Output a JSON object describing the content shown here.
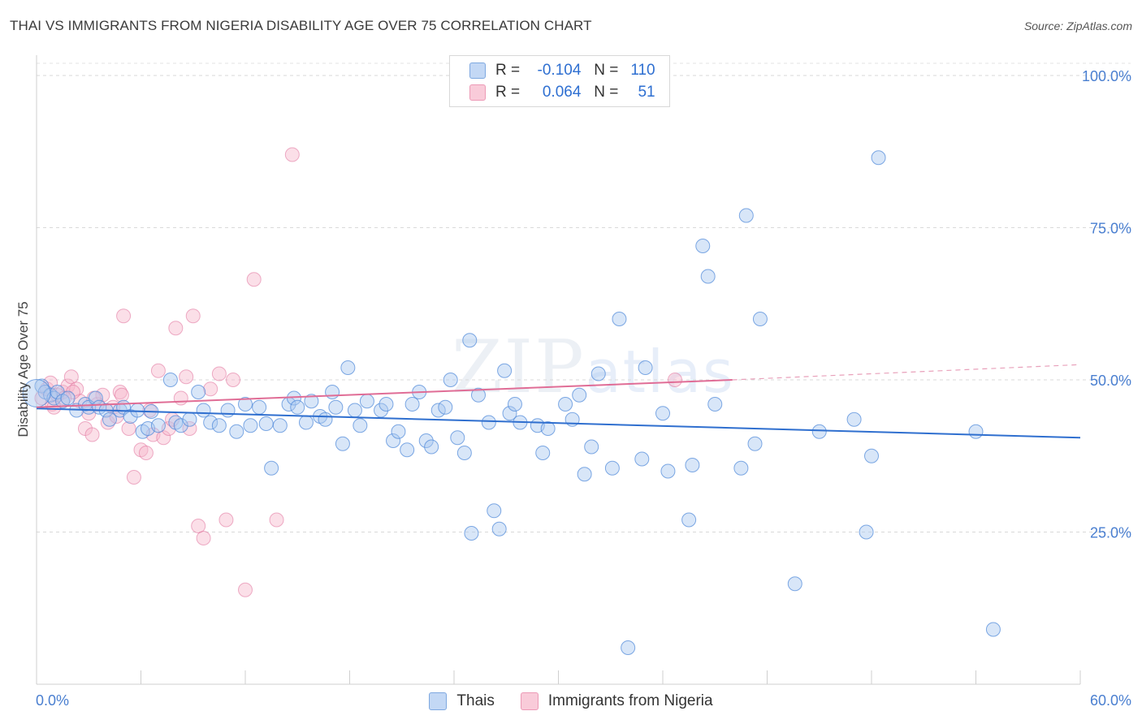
{
  "title": "THAI VS IMMIGRANTS FROM NIGERIA DISABILITY AGE OVER 75 CORRELATION CHART",
  "source": "Source: ZipAtlas.com",
  "watermark": {
    "zip": "ZIP",
    "atlas": "atlas"
  },
  "legend": {
    "rows": [
      {
        "r_label": "R =",
        "r_value": "-0.104",
        "n_label": "N =",
        "n_value": "110",
        "color": "#a9c8f0"
      },
      {
        "r_label": "R =",
        "r_value": "0.064",
        "n_label": "N =",
        "n_value": "51",
        "color": "#f6b8cc"
      }
    ]
  },
  "bottom_legend": [
    {
      "label": "Thais",
      "color": "#a9c8f0"
    },
    {
      "label": "Immigrants from Nigeria",
      "color": "#f6b8cc"
    }
  ],
  "chart_data": {
    "type": "scatter",
    "title": "THAI VS IMMIGRANTS FROM NIGERIA DISABILITY AGE OVER 75 CORRELATION CHART",
    "xlabel": "",
    "ylabel": "Disability Age Over 75",
    "xlim": [
      0,
      60
    ],
    "ylim": [
      0,
      102
    ],
    "x_tick_labels": [
      "0.0%",
      "60.0%"
    ],
    "y_ticks": [
      25,
      50,
      75,
      100
    ],
    "y_tick_labels": [
      "25.0%",
      "50.0%",
      "75.0%",
      "100.0%"
    ],
    "grid": true,
    "series": [
      {
        "name": "Thais",
        "color": "#4a86d8",
        "fill": "#a9c8f0",
        "trend": {
          "x0": 0,
          "y0": 45.3,
          "x1": 60,
          "y1": 40.5
        },
        "points": [
          [
            0.3,
            49.0
          ],
          [
            0.5,
            48.0
          ],
          [
            0.8,
            47.5
          ],
          [
            1.0,
            47.0
          ],
          [
            1.2,
            48.0
          ],
          [
            1.5,
            46.5
          ],
          [
            1.8,
            47.0
          ],
          [
            2.3,
            45.0
          ],
          [
            2.8,
            46.0
          ],
          [
            3.0,
            45.5
          ],
          [
            3.4,
            47.0
          ],
          [
            3.6,
            45.5
          ],
          [
            4.0,
            45.0
          ],
          [
            4.2,
            43.5
          ],
          [
            4.8,
            45.0
          ],
          [
            5.0,
            45.5
          ],
          [
            5.4,
            44.0
          ],
          [
            5.8,
            45.0
          ],
          [
            6.1,
            41.5
          ],
          [
            6.4,
            42.0
          ],
          [
            6.6,
            44.8
          ],
          [
            7.0,
            42.5
          ],
          [
            7.7,
            50.0
          ],
          [
            8.0,
            43.0
          ],
          [
            8.3,
            42.5
          ],
          [
            8.8,
            43.5
          ],
          [
            9.3,
            48.0
          ],
          [
            9.6,
            45.0
          ],
          [
            10.0,
            43.0
          ],
          [
            10.5,
            42.5
          ],
          [
            11.0,
            45.0
          ],
          [
            11.5,
            41.5
          ],
          [
            12.0,
            46.0
          ],
          [
            12.3,
            42.5
          ],
          [
            12.8,
            45.5
          ],
          [
            13.2,
            42.8
          ],
          [
            13.5,
            35.5
          ],
          [
            14.0,
            42.5
          ],
          [
            14.5,
            46.0
          ],
          [
            14.8,
            47.0
          ],
          [
            15.0,
            45.5
          ],
          [
            15.5,
            43.0
          ],
          [
            15.8,
            46.5
          ],
          [
            16.3,
            44.0
          ],
          [
            16.6,
            43.5
          ],
          [
            17.0,
            48.0
          ],
          [
            17.2,
            45.5
          ],
          [
            17.6,
            39.5
          ],
          [
            17.9,
            52.0
          ],
          [
            18.3,
            45.0
          ],
          [
            18.6,
            42.5
          ],
          [
            19.0,
            46.5
          ],
          [
            19.8,
            45.0
          ],
          [
            20.1,
            46.0
          ],
          [
            20.5,
            40.0
          ],
          [
            20.8,
            41.5
          ],
          [
            21.3,
            38.5
          ],
          [
            21.6,
            46.0
          ],
          [
            22.0,
            48.0
          ],
          [
            22.4,
            40.0
          ],
          [
            22.7,
            39.0
          ],
          [
            23.1,
            45.0
          ],
          [
            23.5,
            45.5
          ],
          [
            23.8,
            50.0
          ],
          [
            24.2,
            40.5
          ],
          [
            24.6,
            38.0
          ],
          [
            24.9,
            56.5
          ],
          [
            25.4,
            47.5
          ],
          [
            26.0,
            43.0
          ],
          [
            26.3,
            28.5
          ],
          [
            26.6,
            25.5
          ],
          [
            26.9,
            51.5
          ],
          [
            27.2,
            44.5
          ],
          [
            27.5,
            46.0
          ],
          [
            27.8,
            43.0
          ],
          [
            28.8,
            42.5
          ],
          [
            29.1,
            38.0
          ],
          [
            29.4,
            42.0
          ],
          [
            30.4,
            46.0
          ],
          [
            30.8,
            43.5
          ],
          [
            31.2,
            47.5
          ],
          [
            31.5,
            34.5
          ],
          [
            31.9,
            39.0
          ],
          [
            32.3,
            51.0
          ],
          [
            33.1,
            35.5
          ],
          [
            33.5,
            60.0
          ],
          [
            34.0,
            6.0
          ],
          [
            34.8,
            37.0
          ],
          [
            35.0,
            52.0
          ],
          [
            36.0,
            44.5
          ],
          [
            36.3,
            35.0
          ],
          [
            37.5,
            27.0
          ],
          [
            37.7,
            36.0
          ],
          [
            38.3,
            72.0
          ],
          [
            38.6,
            67.0
          ],
          [
            39.0,
            46.0
          ],
          [
            40.5,
            35.5
          ],
          [
            40.8,
            77.0
          ],
          [
            41.3,
            39.5
          ],
          [
            41.6,
            60.0
          ],
          [
            25.0,
            24.8
          ],
          [
            43.6,
            16.5
          ],
          [
            45.0,
            41.5
          ],
          [
            47.0,
            43.5
          ],
          [
            47.7,
            25.0
          ],
          [
            48.0,
            37.5
          ],
          [
            48.4,
            86.5
          ],
          [
            54.0,
            41.5
          ],
          [
            55.0,
            9.0
          ],
          [
            0.0,
            47.8
          ]
        ]
      },
      {
        "name": "Immigrants from Nigeria",
        "color": "#e0709a",
        "fill": "#f6b8cc",
        "trend": {
          "x0": 0,
          "y0": 45.5,
          "x1": 40,
          "y1": 50.0,
          "dash_to_x": 60,
          "dash_to_y": 52.5
        },
        "points": [
          [
            0.3,
            47.0
          ],
          [
            0.6,
            48.5
          ],
          [
            0.9,
            46.0
          ],
          [
            1.2,
            47.5
          ],
          [
            1.5,
            48.0
          ],
          [
            1.8,
            49.0
          ],
          [
            2.0,
            50.5
          ],
          [
            2.3,
            48.5
          ],
          [
            2.5,
            46.5
          ],
          [
            2.8,
            42.0
          ],
          [
            3.0,
            44.5
          ],
          [
            3.2,
            41.0
          ],
          [
            3.5,
            46.0
          ],
          [
            3.8,
            47.5
          ],
          [
            4.1,
            43.0
          ],
          [
            4.4,
            45.5
          ],
          [
            4.6,
            44.0
          ],
          [
            4.8,
            48.0
          ],
          [
            5.0,
            60.5
          ],
          [
            5.3,
            42.0
          ],
          [
            5.6,
            34.0
          ],
          [
            6.0,
            38.5
          ],
          [
            6.3,
            38.0
          ],
          [
            6.7,
            41.0
          ],
          [
            7.0,
            51.5
          ],
          [
            7.3,
            40.5
          ],
          [
            7.6,
            42.0
          ],
          [
            8.0,
            58.5
          ],
          [
            8.3,
            47.0
          ],
          [
            8.6,
            50.5
          ],
          [
            8.8,
            42.0
          ],
          [
            9.0,
            60.5
          ],
          [
            9.3,
            26.0
          ],
          [
            9.6,
            24.0
          ],
          [
            10.0,
            48.5
          ],
          [
            10.5,
            51.0
          ],
          [
            10.9,
            27.0
          ],
          [
            11.3,
            50.0
          ],
          [
            12.0,
            15.5
          ],
          [
            12.5,
            66.5
          ],
          [
            13.8,
            27.0
          ],
          [
            14.7,
            87.0
          ],
          [
            36.7,
            50.0
          ],
          [
            1.0,
            45.5
          ],
          [
            3.3,
            47.0
          ],
          [
            2.1,
            48.0
          ],
          [
            0.8,
            49.5
          ],
          [
            4.9,
            47.5
          ],
          [
            6.5,
            45.0
          ],
          [
            7.8,
            43.5
          ],
          [
            1.6,
            47.0
          ]
        ]
      }
    ]
  }
}
